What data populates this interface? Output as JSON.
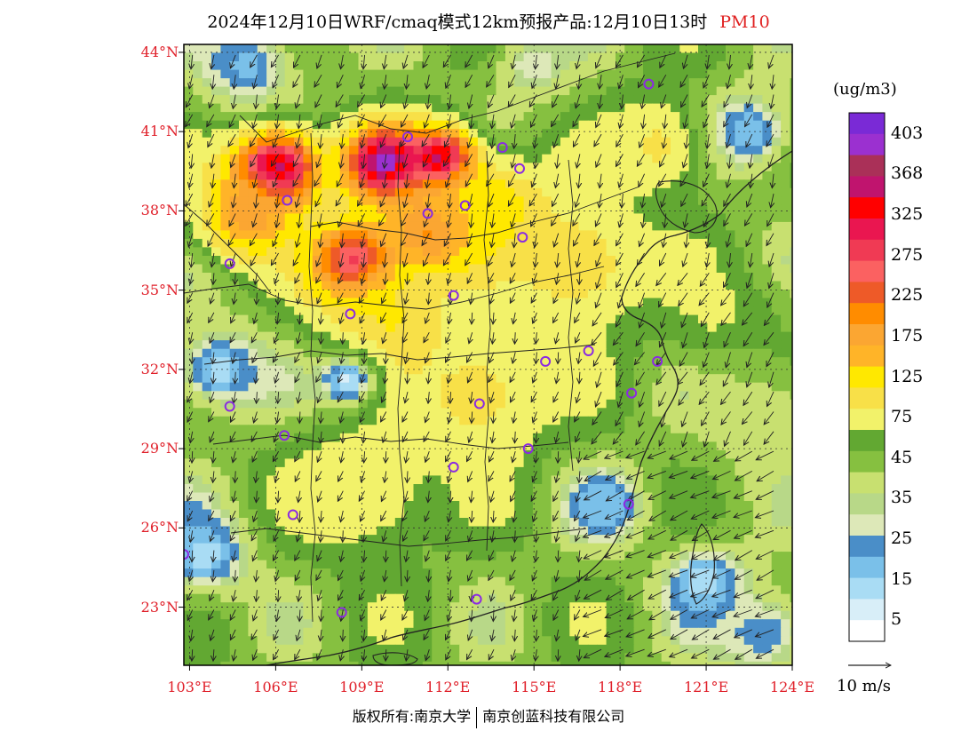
{
  "title": {
    "main": "2024年12月10日WRF/cmaq模式12km预报产品:12月10日13时",
    "pollutant": "PM10"
  },
  "map": {
    "lon_range": [
      102.8,
      124.0
    ],
    "lat_range": [
      20.8,
      44.3
    ],
    "lat_ticks": [
      {
        "value": 44,
        "label": "44°N"
      },
      {
        "value": 41,
        "label": "41°N"
      },
      {
        "value": 38,
        "label": "38°N"
      },
      {
        "value": 35,
        "label": "35°N"
      },
      {
        "value": 32,
        "label": "32°N"
      },
      {
        "value": 29,
        "label": "29°N"
      },
      {
        "value": 26,
        "label": "26°N"
      },
      {
        "value": 23,
        "label": "23°N"
      }
    ],
    "lon_ticks": [
      {
        "value": 103,
        "label": "103°E"
      },
      {
        "value": 106,
        "label": "106°E"
      },
      {
        "value": 109,
        "label": "109°E"
      },
      {
        "value": 112,
        "label": "112°E"
      },
      {
        "value": 115,
        "label": "115°E"
      },
      {
        "value": 118,
        "label": "118°E"
      },
      {
        "value": 121,
        "label": "121°E"
      },
      {
        "value": 124,
        "label": "124°E"
      }
    ],
    "hotspots": [
      {
        "lon": 106.0,
        "lat": 39.6,
        "value": 400,
        "spread": 1.4
      },
      {
        "lon": 109.8,
        "lat": 39.8,
        "value": 410,
        "spread": 1.3
      },
      {
        "lon": 111.8,
        "lat": 39.9,
        "value": 410,
        "spread": 1.1
      },
      {
        "lon": 108.8,
        "lat": 36.0,
        "value": 330,
        "spread": 1.5
      },
      {
        "lon": 111.5,
        "lat": 37.2,
        "value": 230,
        "spread": 1.6
      },
      {
        "lon": 105.0,
        "lat": 37.8,
        "value": 190,
        "spread": 1.6
      },
      {
        "lon": 113.5,
        "lat": 38.0,
        "value": 150,
        "spread": 2.0
      },
      {
        "lon": 110.0,
        "lat": 33.8,
        "value": 130,
        "spread": 2.2
      },
      {
        "lon": 113.0,
        "lat": 31.0,
        "value": 110,
        "spread": 2.6
      },
      {
        "lon": 109.0,
        "lat": 27.5,
        "value": 100,
        "spread": 2.4
      },
      {
        "lon": 116.5,
        "lat": 36.0,
        "value": 120,
        "spread": 2.4
      },
      {
        "lon": 119.5,
        "lat": 40.5,
        "value": 110,
        "spread": 1.8
      },
      {
        "lon": 121.5,
        "lat": 34.0,
        "value": 80,
        "spread": 2.0
      },
      {
        "lon": 104.0,
        "lat": 32.0,
        "value": 12,
        "spread": 1.8
      },
      {
        "lon": 108.5,
        "lat": 31.6,
        "value": 8,
        "spread": 1.2
      },
      {
        "lon": 103.5,
        "lat": 25.0,
        "value": 12,
        "spread": 1.8
      },
      {
        "lon": 121.0,
        "lat": 24.0,
        "value": 10,
        "spread": 1.5
      },
      {
        "lon": 117.5,
        "lat": 26.8,
        "value": 15,
        "spread": 1.5
      },
      {
        "lon": 122.5,
        "lat": 41.0,
        "value": 15,
        "spread": 1.8
      },
      {
        "lon": 105.0,
        "lat": 43.5,
        "value": 18,
        "spread": 2.0
      },
      {
        "lon": 123.0,
        "lat": 30.0,
        "value": 35,
        "spread": 2.5
      },
      {
        "lon": 123.0,
        "lat": 22.0,
        "value": 20,
        "spread": 2.0
      },
      {
        "lon": 115.0,
        "lat": 43.5,
        "value": 25,
        "spread": 1.5
      }
    ],
    "stations": [
      {
        "lon": 119.0,
        "lat": 42.8
      },
      {
        "lon": 113.9,
        "lat": 40.4
      },
      {
        "lon": 114.5,
        "lat": 39.6
      },
      {
        "lon": 110.6,
        "lat": 40.8
      },
      {
        "lon": 106.4,
        "lat": 38.4
      },
      {
        "lon": 112.6,
        "lat": 38.2
      },
      {
        "lon": 111.3,
        "lat": 37.9
      },
      {
        "lon": 114.6,
        "lat": 37.0
      },
      {
        "lon": 104.4,
        "lat": 36.0
      },
      {
        "lon": 112.2,
        "lat": 34.8
      },
      {
        "lon": 108.6,
        "lat": 34.1
      },
      {
        "lon": 115.4,
        "lat": 32.3
      },
      {
        "lon": 116.9,
        "lat": 32.7
      },
      {
        "lon": 119.3,
        "lat": 32.3
      },
      {
        "lon": 118.4,
        "lat": 31.1
      },
      {
        "lon": 104.4,
        "lat": 30.6
      },
      {
        "lon": 113.1,
        "lat": 30.7
      },
      {
        "lon": 106.3,
        "lat": 29.5
      },
      {
        "lon": 114.8,
        "lat": 29.0
      },
      {
        "lon": 112.2,
        "lat": 28.3
      },
      {
        "lon": 118.3,
        "lat": 26.9
      },
      {
        "lon": 106.6,
        "lat": 26.5
      },
      {
        "lon": 102.8,
        "lat": 25.0
      },
      {
        "lon": 113.0,
        "lat": 23.3
      },
      {
        "lon": 108.3,
        "lat": 22.8
      }
    ],
    "colors": {
      "station_circle": "#8a2be2",
      "border": "#222222",
      "vector": "#222222",
      "tick_text": "#e0202a"
    }
  },
  "colorbar": {
    "unit": "(ug/m3)",
    "levels": [
      {
        "min": 0,
        "max": 5,
        "color": "#ffffff"
      },
      {
        "min": 5,
        "max": 10,
        "color": "#d8eef8"
      },
      {
        "min": 10,
        "max": 15,
        "color": "#a9dcf4"
      },
      {
        "min": 15,
        "max": 20,
        "color": "#7ac0e9"
      },
      {
        "min": 20,
        "max": 25,
        "color": "#4a8ec8"
      },
      {
        "min": 25,
        "max": 30,
        "color": "#dde8b8"
      },
      {
        "min": 30,
        "max": 35,
        "color": "#b8d888"
      },
      {
        "min": 35,
        "max": 45,
        "color": "#c8e070"
      },
      {
        "min": 45,
        "max": 60,
        "color": "#86c040"
      },
      {
        "min": 60,
        "max": 75,
        "color": "#62a832"
      },
      {
        "min": 75,
        "max": 100,
        "color": "#f2f26a"
      },
      {
        "min": 100,
        "max": 125,
        "color": "#f8e048"
      },
      {
        "min": 125,
        "max": 150,
        "color": "#ffe800"
      },
      {
        "min": 150,
        "max": 175,
        "color": "#ffb428"
      },
      {
        "min": 175,
        "max": 200,
        "color": "#fba632"
      },
      {
        "min": 200,
        "max": 225,
        "color": "#ff8c00"
      },
      {
        "min": 225,
        "max": 250,
        "color": "#ee5a28"
      },
      {
        "min": 250,
        "max": 275,
        "color": "#fb6161"
      },
      {
        "min": 275,
        "max": 300,
        "color": "#f03a54"
      },
      {
        "min": 300,
        "max": 325,
        "color": "#ea1650"
      },
      {
        "min": 325,
        "max": 350,
        "color": "#ff0000"
      },
      {
        "min": 350,
        "max": 368,
        "color": "#c0146e"
      },
      {
        "min": 368,
        "max": 385,
        "color": "#aa3058"
      },
      {
        "min": 385,
        "max": 403,
        "color": "#9b30d0"
      },
      {
        "min": 403,
        "max": 450,
        "color": "#7a2ad6"
      }
    ],
    "labels": [
      "403",
      "368",
      "325",
      "275",
      "225",
      "175",
      "125",
      "75",
      "45",
      "35",
      "25",
      "15",
      "5"
    ]
  },
  "wind_reference": {
    "label": "10 m/s"
  },
  "footer": {
    "copyright_left": "版权所有:南京大学",
    "copyright_right": "南京创蓝科技有限公司"
  }
}
